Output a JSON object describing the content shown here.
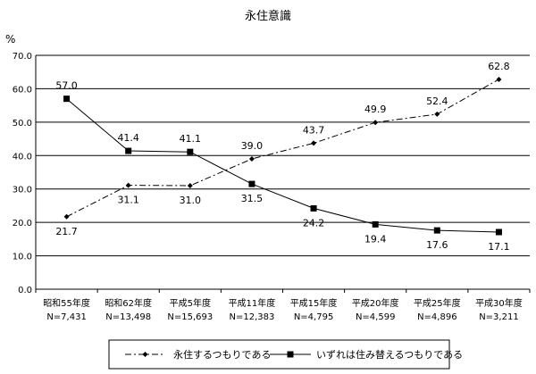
{
  "chart_data": {
    "type": "line",
    "title": "永住意識",
    "yunit": "%",
    "ylim": [
      0,
      70
    ],
    "ytick_labels": [
      "0.0",
      "10.0",
      "20.0",
      "30.0",
      "40.0",
      "50.0",
      "60.0",
      "70.0"
    ],
    "grid": true,
    "legend_position": "bottom",
    "categories": [
      "昭和55年度",
      "昭和62年度",
      "平成5年度",
      "平成11年度",
      "平成15年度",
      "平成20年度",
      "平成25年度",
      "平成30年度"
    ],
    "sample_sizes": [
      "N=7,431",
      "N=13,498",
      "N=15,693",
      "N=12,383",
      "N=4,795",
      "N=4,599",
      "N=4,896",
      "N=3,211"
    ],
    "series": [
      {
        "name": "永住するつもりである",
        "style": "dash-dot",
        "marker": "diamond",
        "values": [
          21.7,
          31.1,
          31.0,
          39.0,
          43.7,
          49.9,
          52.4,
          62.8
        ],
        "labels": [
          "21.7",
          "31.1",
          "31.0",
          "39.0",
          "43.7",
          "49.9",
          "52.4",
          "62.8"
        ]
      },
      {
        "name": "いずれは住み替えるつもりである",
        "style": "solid",
        "marker": "square",
        "values": [
          57.0,
          41.4,
          41.1,
          31.5,
          24.2,
          19.4,
          17.6,
          17.1
        ],
        "labels": [
          "57.0",
          "41.4",
          "41.1",
          "31.5",
          "24.2",
          "19.4",
          "17.6",
          "17.1"
        ]
      }
    ]
  }
}
